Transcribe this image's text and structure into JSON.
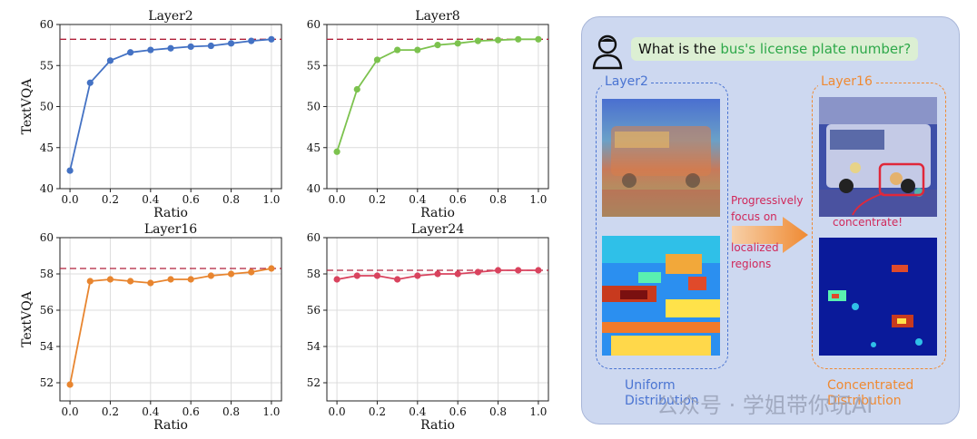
{
  "chart_data": [
    {
      "type": "line",
      "title": "Layer2",
      "xlabel": "Ratio",
      "ylabel": "TextVQA",
      "x": [
        0.0,
        0.1,
        0.2,
        0.3,
        0.4,
        0.5,
        0.6,
        0.7,
        0.8,
        0.9,
        1.0
      ],
      "values": [
        42.2,
        52.9,
        55.6,
        56.6,
        56.9,
        57.1,
        57.3,
        57.4,
        57.7,
        58.0,
        58.2
      ],
      "baseline": 58.2,
      "xlim": [
        -0.05,
        1.05
      ],
      "ylim": [
        40,
        60
      ],
      "xticks": [
        "0.0",
        "0.2",
        "0.4",
        "0.6",
        "0.8",
        "1.0"
      ],
      "yticks": [
        "40",
        "45",
        "50",
        "55",
        "60"
      ],
      "color": "#4472c4",
      "grid": true
    },
    {
      "type": "line",
      "title": "Layer8",
      "xlabel": "Ratio",
      "ylabel": "",
      "x": [
        0.0,
        0.1,
        0.2,
        0.3,
        0.4,
        0.5,
        0.6,
        0.7,
        0.8,
        0.9,
        1.0
      ],
      "values": [
        44.5,
        52.1,
        55.7,
        56.9,
        56.9,
        57.5,
        57.7,
        58.0,
        58.1,
        58.2,
        58.2
      ],
      "baseline": 58.2,
      "xlim": [
        -0.05,
        1.05
      ],
      "ylim": [
        40,
        60
      ],
      "xticks": [
        "0.0",
        "0.2",
        "0.4",
        "0.6",
        "0.8",
        "1.0"
      ],
      "yticks": [
        "40",
        "45",
        "50",
        "55",
        "60"
      ],
      "color": "#7cc24e",
      "grid": true
    },
    {
      "type": "line",
      "title": "Layer16",
      "xlabel": "Ratio",
      "ylabel": "TextVQA",
      "x": [
        0.0,
        0.1,
        0.2,
        0.3,
        0.4,
        0.5,
        0.6,
        0.7,
        0.8,
        0.9,
        1.0
      ],
      "values": [
        51.9,
        57.6,
        57.7,
        57.6,
        57.5,
        57.7,
        57.7,
        57.9,
        58.0,
        58.1,
        58.3
      ],
      "baseline": 58.3,
      "xlim": [
        -0.05,
        1.05
      ],
      "ylim": [
        51,
        60
      ],
      "xticks": [
        "0.0",
        "0.2",
        "0.4",
        "0.6",
        "0.8",
        "1.0"
      ],
      "yticks": [
        "52",
        "54",
        "56",
        "58",
        "60"
      ],
      "color": "#e8852f",
      "grid": true
    },
    {
      "type": "line",
      "title": "Layer24",
      "xlabel": "Ratio",
      "ylabel": "",
      "x": [
        0.0,
        0.1,
        0.2,
        0.3,
        0.4,
        0.5,
        0.6,
        0.7,
        0.8,
        0.9,
        1.0
      ],
      "values": [
        57.7,
        57.9,
        57.9,
        57.7,
        57.9,
        58.0,
        58.0,
        58.1,
        58.2,
        58.2,
        58.2
      ],
      "baseline": 58.2,
      "xlim": [
        -0.05,
        1.05
      ],
      "ylim": [
        51,
        60
      ],
      "xticks": [
        "0.0",
        "0.2",
        "0.4",
        "0.6",
        "0.8",
        "1.0"
      ],
      "yticks": [
        "52",
        "54",
        "56",
        "58",
        "60"
      ],
      "color": "#d9435e",
      "grid": true
    }
  ],
  "diagram": {
    "question_prefix": "What is the ",
    "question_highlight": "bus's license plate number?",
    "left_label": "Layer2",
    "right_label": "Layer16",
    "arrow_top_1": "Progressively",
    "arrow_top_2": "focus on",
    "arrow_bottom_1": "localized",
    "arrow_bottom_2": "regions",
    "concentrate_label": "concentrate!",
    "left_caption_1": "Uniform",
    "left_caption_2": "Distribution",
    "right_caption_1": "Concentrated",
    "right_caption_2": "Distribution",
    "watermark": "公众号 · 学姐带你玩AI",
    "colors": {
      "blue": "#4a74d2",
      "orange": "#ef8a33",
      "pink": "#d0285a"
    }
  }
}
